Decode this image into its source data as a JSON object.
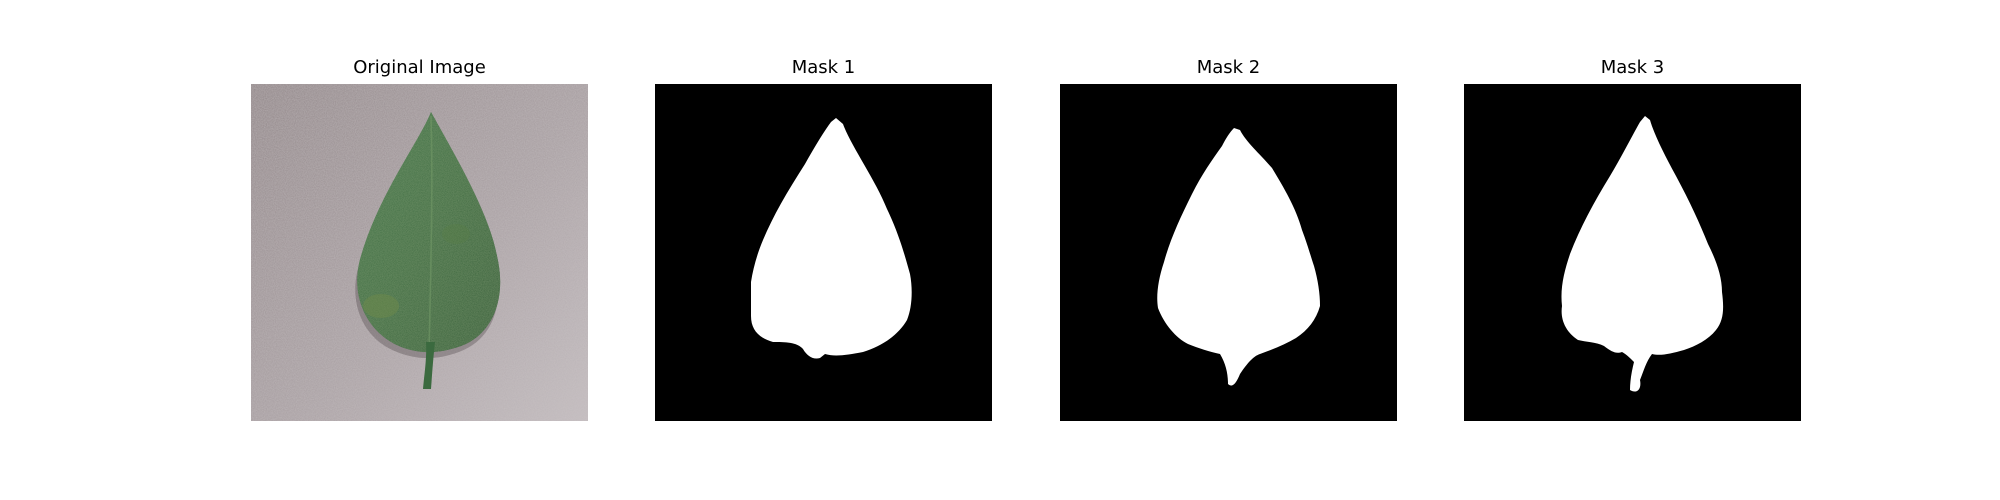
{
  "figure": {
    "panels": [
      {
        "title": "Original Image"
      },
      {
        "title": "Mask 1"
      },
      {
        "title": "Mask 2"
      },
      {
        "title": "Mask 3"
      }
    ]
  },
  "colors": {
    "figure_background": "#ffffff",
    "mask_background": "#000000",
    "mask_foreground": "#ffffff",
    "photo_background": "#a39a9c",
    "leaf_green": "#3d6a40"
  }
}
